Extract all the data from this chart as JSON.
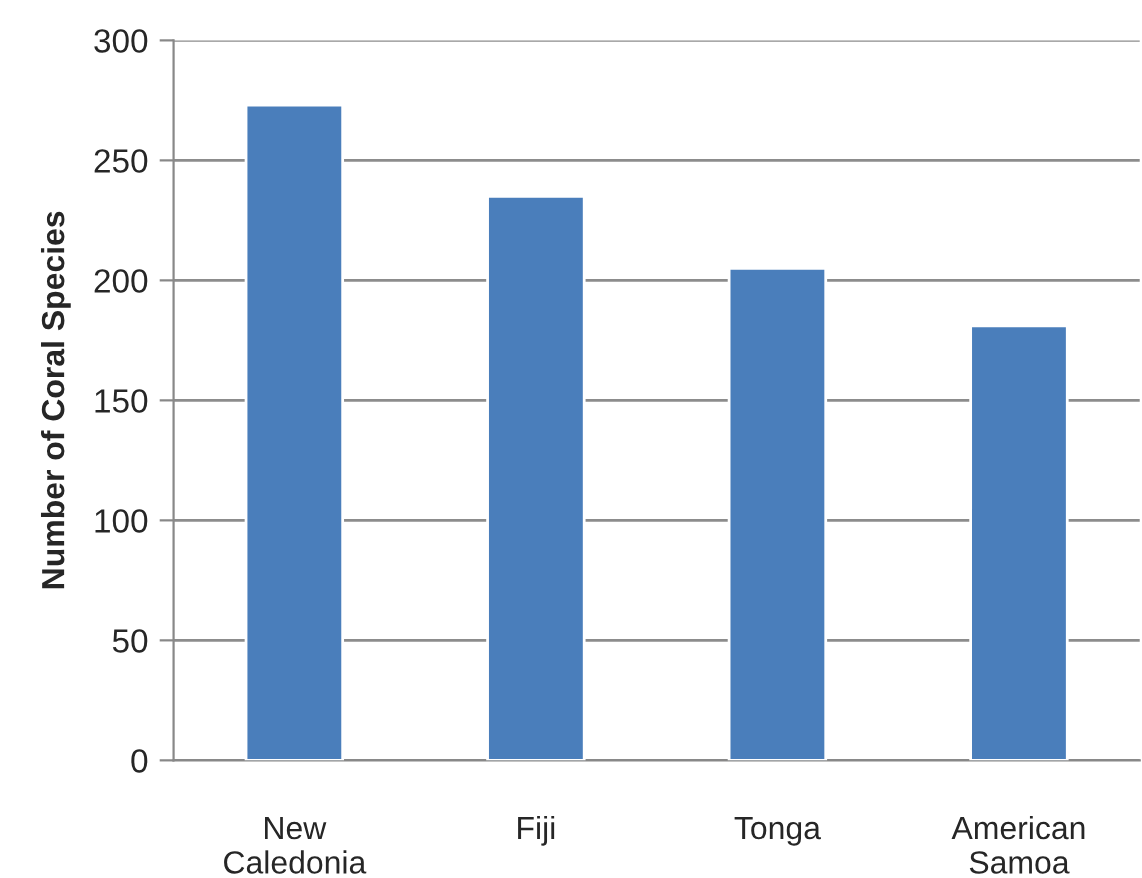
{
  "chart_data": {
    "type": "bar",
    "ylabel": "Number of Coral Species",
    "categories": [
      "New Caledonia",
      "Fiji",
      "Tonga",
      "American Samoa"
    ],
    "values": [
      273,
      235,
      205,
      181
    ],
    "color": "#4a7ebb",
    "ylim": [
      0,
      300
    ],
    "yticks": [
      0,
      50,
      100,
      150,
      200,
      250,
      300
    ],
    "grid": "y",
    "legend": false
  }
}
